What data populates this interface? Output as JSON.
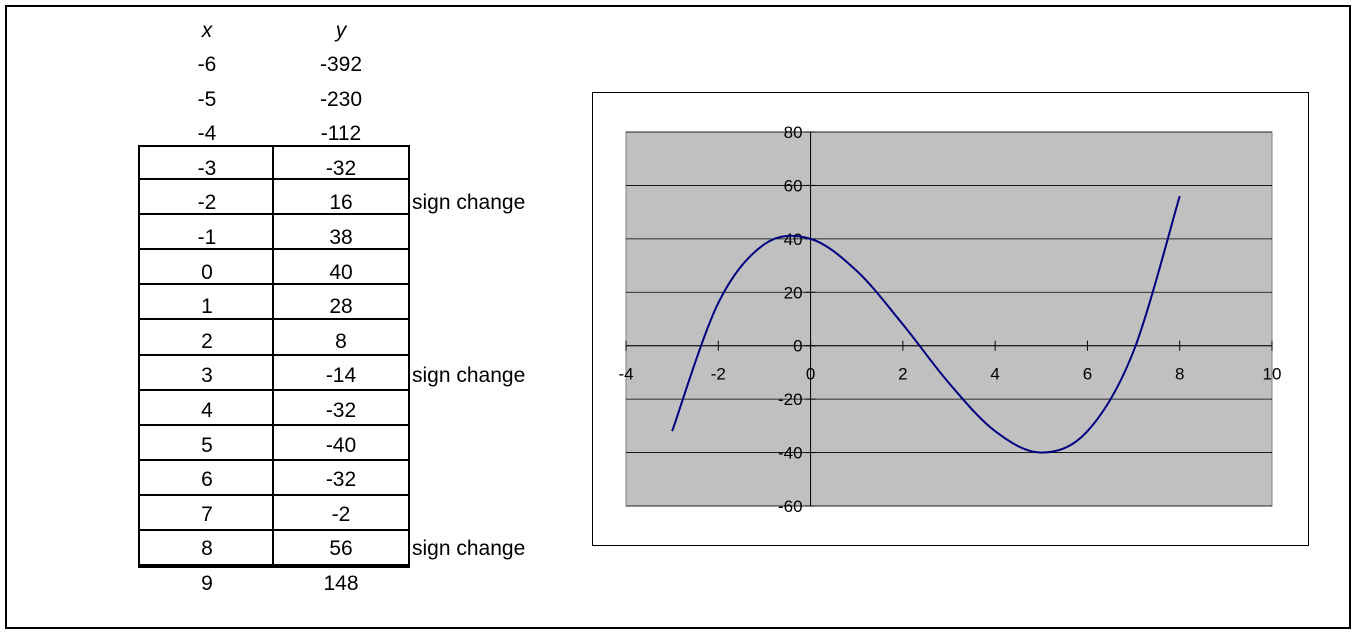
{
  "table": {
    "header_x": "x",
    "header_y": "y",
    "rows": [
      {
        "x": "-6",
        "y": "-392",
        "note": ""
      },
      {
        "x": "-5",
        "y": "-230",
        "note": ""
      },
      {
        "x": "-4",
        "y": "-112",
        "note": ""
      },
      {
        "x": "-3",
        "y": "-32",
        "note": ""
      },
      {
        "x": "-2",
        "y": "16",
        "note": "sign change"
      },
      {
        "x": "-1",
        "y": "38",
        "note": ""
      },
      {
        "x": "0",
        "y": "40",
        "note": ""
      },
      {
        "x": "1",
        "y": "28",
        "note": ""
      },
      {
        "x": "2",
        "y": "8",
        "note": ""
      },
      {
        "x": "3",
        "y": "-14",
        "note": "sign change"
      },
      {
        "x": "4",
        "y": "-32",
        "note": ""
      },
      {
        "x": "5",
        "y": "-40",
        "note": ""
      },
      {
        "x": "6",
        "y": "-32",
        "note": ""
      },
      {
        "x": "7",
        "y": "-2",
        "note": ""
      },
      {
        "x": "8",
        "y": "56",
        "note": "sign change"
      },
      {
        "x": "9",
        "y": "148",
        "note": ""
      }
    ]
  },
  "chart_data": {
    "type": "line",
    "x": [
      -3,
      -2,
      -1,
      0,
      1,
      2,
      3,
      4,
      5,
      6,
      7,
      8
    ],
    "series": [
      {
        "values": [
          -32,
          16,
          38,
          40,
          28,
          8,
          -14,
          -32,
          -40,
          -32,
          -2,
          56
        ],
        "color": "#000080"
      }
    ],
    "xlim": [
      -4,
      10
    ],
    "ylim": [
      -60,
      80
    ],
    "xticks": [
      -4,
      -2,
      0,
      2,
      4,
      6,
      8,
      10
    ],
    "yticks": [
      -60,
      -40,
      -20,
      0,
      20,
      40,
      60,
      80
    ],
    "plot_background": "#c0c0c0",
    "grid": "horizontal",
    "title": "",
    "xlabel": "",
    "ylabel": ""
  }
}
